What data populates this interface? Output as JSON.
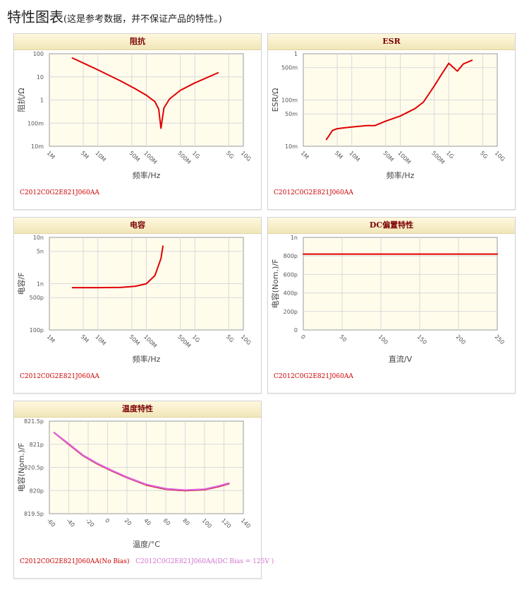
{
  "page": {
    "title": "特性图表",
    "note": "(这是参考数据，并不保证产品的特性。)"
  },
  "charts": {
    "impedance": {
      "title": "阻抗",
      "xlabel": "频率/Hz",
      "ylabel": "阻抗/Ω",
      "part": "C2012C0G2E821J060AA",
      "xticks": [
        "1M",
        "5M",
        "10M",
        "50M",
        "100M",
        "500M",
        "1G",
        "5G",
        "10G"
      ],
      "yticks": [
        "100",
        "10",
        "1",
        "100m",
        "10m"
      ]
    },
    "esr": {
      "title": "ESR",
      "xlabel": "频率/Hz",
      "ylabel": "ESR/Ω",
      "part": "C2012C0G2E821J060AA",
      "xticks": [
        "1M",
        "5M",
        "10M",
        "50M",
        "100M",
        "500M",
        "1G",
        "5G",
        "10G"
      ],
      "yticks": [
        "1",
        "500m",
        "100m",
        "50m",
        "10m"
      ]
    },
    "capacitance": {
      "title": "电容",
      "xlabel": "频率/Hz",
      "ylabel": "电容/F",
      "part": "C2012C0G2E821J060AA",
      "xticks": [
        "1M",
        "5M",
        "10M",
        "50M",
        "100M",
        "500M",
        "1G",
        "5G",
        "10G"
      ],
      "yticks": [
        "10n",
        "5n",
        "1n",
        "500p",
        "100p"
      ]
    },
    "dcbias": {
      "title": "DC偏置特性",
      "xlabel": "直流/V",
      "ylabel": "电容(Nom.)/F",
      "part": "C2012C0G2E821J060AA",
      "xticks": [
        "0",
        "50",
        "100",
        "150",
        "200",
        "250"
      ],
      "yticks": [
        "1n",
        "800p",
        "600p",
        "400p",
        "200p",
        "0"
      ]
    },
    "temperature": {
      "title": "温度特性",
      "xlabel": "温度/°C",
      "ylabel": "电容(Nom.)/F",
      "part": "C2012C0G2E821J060AA(No Bias)",
      "part2": "C2012C0G2E821J060AA(DC Bias = 125V )",
      "xticks": [
        "-60",
        "-40",
        "-20",
        "0",
        "20",
        "40",
        "60",
        "80",
        "100",
        "120",
        "140"
      ],
      "yticks": [
        "821.5p",
        "821p",
        "820.5p",
        "820p",
        "819.5p"
      ]
    }
  },
  "chart_data": [
    {
      "type": "line",
      "title": "阻抗",
      "xlabel": "频率/Hz",
      "ylabel": "阻抗/Ω",
      "xscale": "log",
      "yscale": "log",
      "xlim": [
        1000000,
        10000000000
      ],
      "ylim": [
        0.01,
        100
      ],
      "color": "#e00000",
      "series": [
        {
          "x": [
            3000000,
            10000000,
            30000000,
            60000000,
            100000000,
            150000000,
            180000000,
            200000000,
            230000000,
            300000000,
            500000000,
            1000000000,
            3000000000
          ],
          "y": [
            65,
            20,
            6.5,
            3.0,
            1.6,
            0.85,
            0.4,
            0.06,
            0.45,
            1.1,
            2.6,
            5.5,
            15
          ]
        }
      ]
    },
    {
      "type": "line",
      "title": "ESR",
      "xlabel": "频率/Hz",
      "ylabel": "ESR/Ω",
      "xscale": "log",
      "yscale": "log",
      "xlim": [
        1000000,
        10000000000
      ],
      "ylim": [
        0.01,
        1
      ],
      "color": "#e00000",
      "series": [
        {
          "x": [
            3000000,
            4000000,
            5000000,
            7000000,
            10000000,
            20000000,
            30000000,
            50000000,
            100000000,
            200000000,
            300000000,
            500000000,
            700000000,
            1000000000,
            1500000000,
            2000000000,
            3000000000
          ],
          "y": [
            0.014,
            0.022,
            0.024,
            0.025,
            0.026,
            0.028,
            0.028,
            0.035,
            0.045,
            0.065,
            0.09,
            0.2,
            0.35,
            0.62,
            0.42,
            0.6,
            0.72
          ]
        }
      ]
    },
    {
      "type": "line",
      "title": "电容",
      "xlabel": "频率/Hz",
      "ylabel": "电容/F",
      "xscale": "log",
      "yscale": "log",
      "xlim": [
        1000000,
        10000000000
      ],
      "ylim": [
        1e-10,
        1e-08
      ],
      "color": "#e00000",
      "series": [
        {
          "x": [
            3000000,
            10000000,
            30000000,
            60000000,
            100000000,
            150000000,
            200000000,
            220000000
          ],
          "y": [
            8.2e-10,
            8.2e-10,
            8.3e-10,
            8.8e-10,
            1e-09,
            1.5e-09,
            3.5e-09,
            6.5e-09
          ]
        }
      ]
    },
    {
      "type": "line",
      "title": "DC偏置特性",
      "xlabel": "直流/V",
      "ylabel": "电容(Nom.)/F",
      "xlim": [
        0,
        250
      ],
      "ylim": [
        0,
        1e-09
      ],
      "color": "#e00000",
      "series": [
        {
          "x": [
            0,
            250
          ],
          "y": [
            8.2e-10,
            8.2e-10
          ]
        }
      ]
    },
    {
      "type": "line",
      "title": "温度特性",
      "xlabel": "温度/°C",
      "ylabel": "电容(Nom.)/F",
      "xlim": [
        -60,
        140
      ],
      "ylim": [
        8.195e-10,
        8.215e-10
      ],
      "series": [
        {
          "name": "C2012C0G2E821J060AA(No Bias)",
          "color": "#cc0000",
          "x": [
            -55,
            -40,
            -25,
            -10,
            5,
            20,
            40,
            60,
            80,
            100,
            115,
            125
          ],
          "y": [
            8.2125e-10,
            8.21e-10,
            8.2075e-10,
            8.2057e-10,
            8.2042e-10,
            8.2028e-10,
            8.2012e-10,
            8.2003e-10,
            8.2e-10,
            8.2002e-10,
            8.2009e-10,
            8.2015e-10
          ]
        },
        {
          "name": "C2012C0G2E821J060AA(DC Bias = 125V )",
          "color": "#dd66dd",
          "x": [
            -55,
            -40,
            -25,
            -10,
            5,
            20,
            40,
            60,
            80,
            100,
            115,
            125
          ],
          "y": [
            8.2125e-10,
            8.2101e-10,
            8.2076e-10,
            8.2058e-10,
            8.2043e-10,
            8.2029e-10,
            8.2013e-10,
            8.2004e-10,
            8.2001e-10,
            8.2003e-10,
            8.201e-10,
            8.2016e-10
          ]
        }
      ]
    }
  ]
}
